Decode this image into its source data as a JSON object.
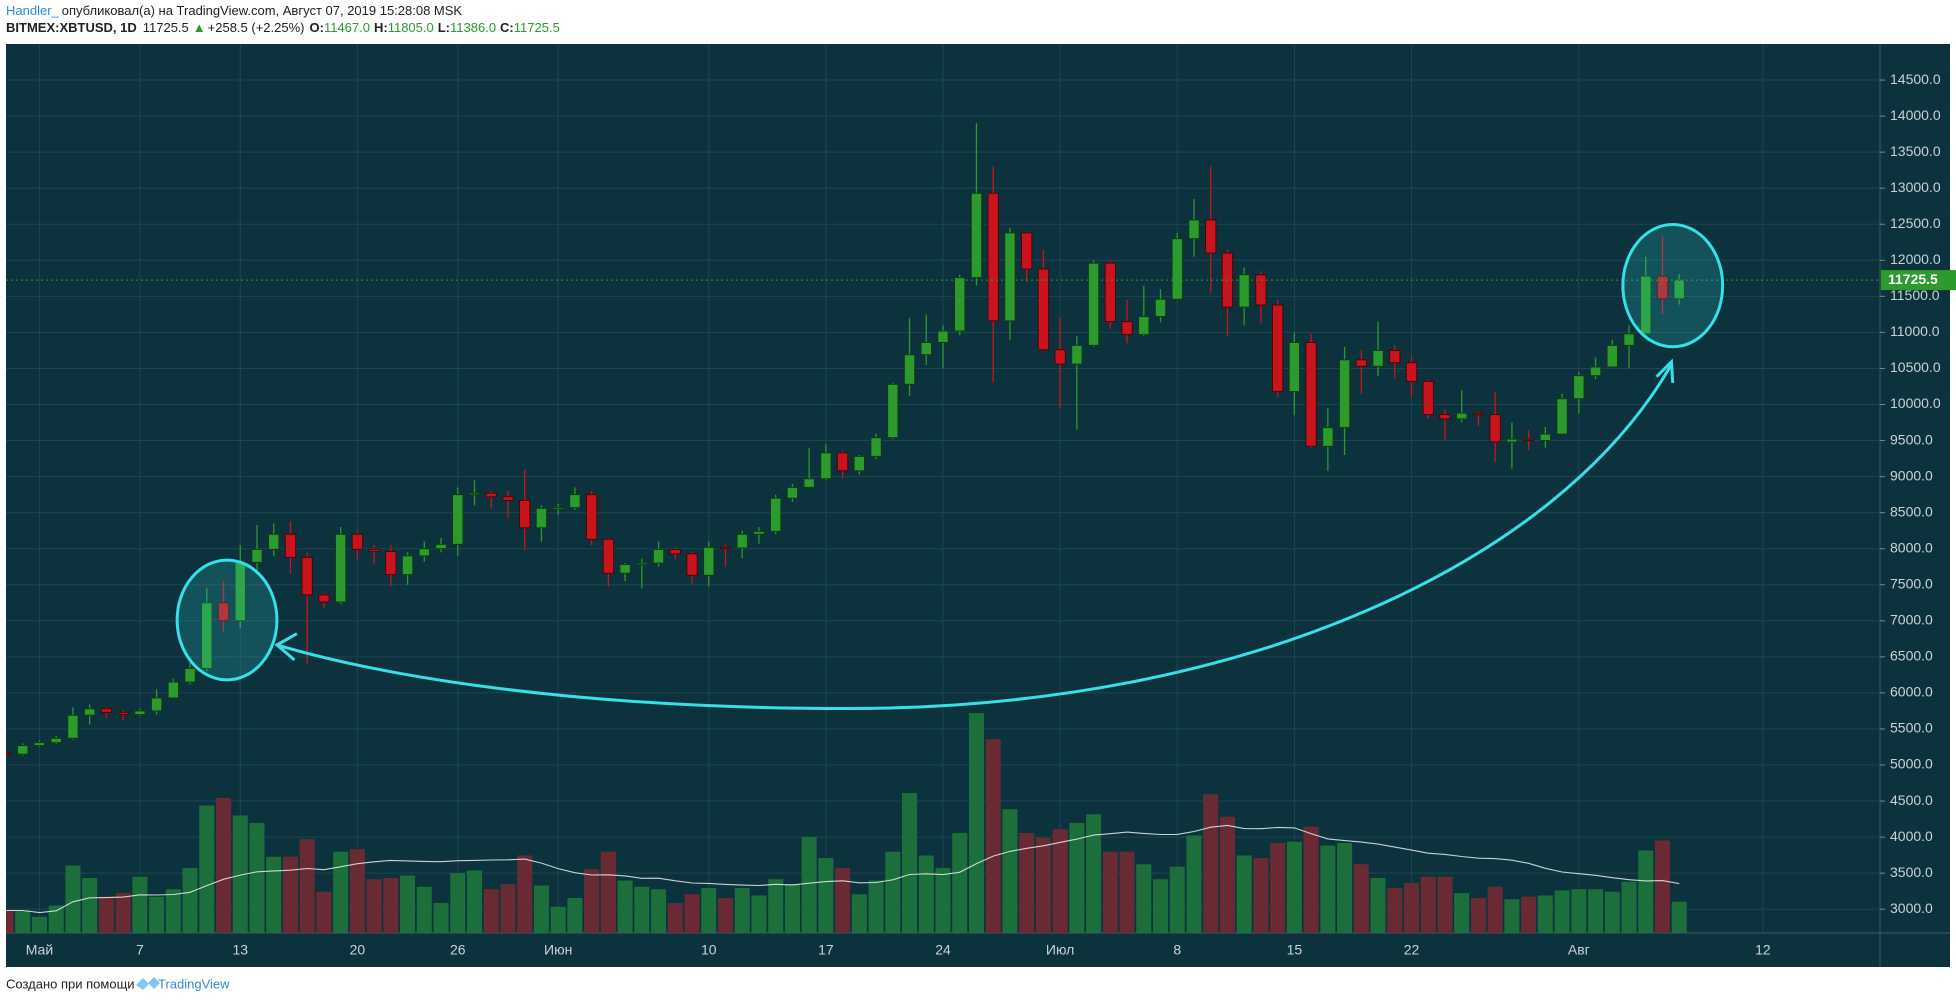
{
  "header": {
    "author": "Handler_",
    "published": "опубликовал(а) на TradingView.com, Август 07, 2019 15:28:08 MSK",
    "symbol": "BITMEX:XBTUSD, 1D",
    "last": "11725.5",
    "change_arrow": "▲",
    "change": "+258.5 (+2.25%)",
    "open_label": "O:",
    "open": "11467.0",
    "high_label": "H:",
    "high": "11805.0",
    "low_label": "L:",
    "low": "11386.0",
    "close_label": "C:",
    "close": "11725.5"
  },
  "chart_data": {
    "type": "candlestick",
    "x": [
      "04-29",
      "04-30",
      "05-01",
      "05-02",
      "05-03",
      "05-04",
      "05-05",
      "05-06",
      "05-07",
      "05-08",
      "05-09",
      "05-10",
      "05-11",
      "05-12",
      "05-13",
      "05-14",
      "05-15",
      "05-16",
      "05-17",
      "05-18",
      "05-19",
      "05-20",
      "05-21",
      "05-22",
      "05-23",
      "05-24",
      "05-25",
      "05-26",
      "05-27",
      "05-28",
      "05-29",
      "05-30",
      "05-31",
      "06-01",
      "06-02",
      "06-03",
      "06-04",
      "06-05",
      "06-06",
      "06-07",
      "06-08",
      "06-09",
      "06-10",
      "06-11",
      "06-12",
      "06-13",
      "06-14",
      "06-15",
      "06-16",
      "06-17",
      "06-18",
      "06-19",
      "06-20",
      "06-21",
      "06-22",
      "06-23",
      "06-24",
      "06-25",
      "06-26",
      "06-27",
      "06-28",
      "06-29",
      "06-30",
      "07-01",
      "07-02",
      "07-03",
      "07-04",
      "07-05",
      "07-06",
      "07-07",
      "07-08",
      "07-09",
      "07-10",
      "07-11",
      "07-12",
      "07-13",
      "07-14",
      "07-15",
      "07-16",
      "07-17",
      "07-18",
      "07-19",
      "07-20",
      "07-21",
      "07-22",
      "07-23",
      "07-24",
      "07-25",
      "07-26",
      "07-27",
      "07-28",
      "07-29",
      "07-30",
      "07-31",
      "08-01",
      "08-02",
      "08-03",
      "08-04",
      "08-05",
      "08-06",
      "08-07"
    ],
    "open": [
      5170,
      5150,
      5270,
      5310,
      5370,
      5690,
      5780,
      5730,
      5700,
      5750,
      5930,
      6150,
      6340,
      7250,
      7000,
      7810,
      7990,
      8200,
      7880,
      7360,
      7260,
      8200,
      7990,
      7960,
      7640,
      7900,
      8000,
      8060,
      8750,
      8770,
      8720,
      8670,
      8290,
      8560,
      8570,
      8750,
      8130,
      7660,
      7780,
      7800,
      7990,
      7930,
      7630,
      8020,
      8010,
      8200,
      8240,
      8700,
      8850,
      8970,
      9330,
      9080,
      9280,
      9540,
      10280,
      10690,
      10860,
      11020,
      11760,
      12930,
      11160,
      12380,
      11880,
      10760,
      10560,
      10820,
      11960,
      11150,
      10970,
      11220,
      11460,
      12300,
      12560,
      12100,
      11350,
      11800,
      11380,
      10180,
      10860,
      9420,
      9680,
      10620,
      10530,
      10750,
      10580,
      10320,
      9860,
      9800,
      9880,
      9860,
      9480,
      9520,
      9500,
      9590,
      10080,
      10400,
      10520,
      10820,
      10980,
      11780,
      11467
    ],
    "high": [
      5200,
      5300,
      5340,
      5400,
      5800,
      5840,
      5800,
      5760,
      5780,
      6050,
      6200,
      6420,
      7450,
      7550,
      8050,
      8330,
      8350,
      8380,
      7950,
      7380,
      8300,
      8250,
      8050,
      8050,
      7950,
      8100,
      8150,
      8850,
      8950,
      8800,
      8800,
      9100,
      8600,
      8620,
      8850,
      8800,
      8150,
      7800,
      7860,
      8100,
      8020,
      7960,
      8100,
      8050,
      8250,
      8300,
      8750,
      8900,
      9400,
      9450,
      9360,
      9300,
      9600,
      10300,
      11200,
      11250,
      11100,
      11800,
      13900,
      13300,
      12450,
      12400,
      12150,
      11200,
      10950,
      12000,
      12000,
      11450,
      11650,
      11600,
      12380,
      12850,
      13300,
      12150,
      11900,
      11850,
      11450,
      11000,
      10980,
      9950,
      10800,
      10750,
      11150,
      10820,
      10680,
      10340,
      9930,
      10200,
      9900,
      10180,
      9750,
      9640,
      9690,
      10150,
      10450,
      10650,
      10900,
      11100,
      12050,
      12330,
      11805
    ],
    "low": [
      5120,
      5130,
      5250,
      5290,
      5350,
      5560,
      5650,
      5620,
      5680,
      5700,
      5920,
      6120,
      6300,
      6850,
      6900,
      7650,
      7900,
      7650,
      6400,
      7170,
      7230,
      7850,
      7780,
      7480,
      7500,
      7820,
      7950,
      7900,
      8600,
      8560,
      8420,
      7980,
      8100,
      8470,
      8540,
      8050,
      7480,
      7550,
      7450,
      7750,
      7850,
      7520,
      7480,
      7750,
      7870,
      8070,
      8200,
      8650,
      8840,
      8950,
      8970,
      9030,
      9240,
      9520,
      10120,
      10550,
      10500,
      10960,
      11650,
      10300,
      10900,
      11700,
      10750,
      9950,
      9650,
      10800,
      11050,
      10850,
      10950,
      11140,
      11450,
      12050,
      11550,
      10950,
      11100,
      11120,
      10100,
      9850,
      9400,
      9080,
      9300,
      10150,
      10390,
      10360,
      10100,
      9800,
      9500,
      9750,
      9700,
      9200,
      9110,
      9370,
      9400,
      9580,
      9880,
      10350,
      10510,
      10500,
      10950,
      11250,
      11386
    ],
    "close": [
      5150,
      5270,
      5310,
      5370,
      5690,
      5780,
      5730,
      5700,
      5750,
      5930,
      6150,
      6340,
      7250,
      7000,
      7810,
      7990,
      8200,
      7880,
      7360,
      7260,
      8200,
      7990,
      7960,
      7640,
      7900,
      8000,
      8060,
      8750,
      8770,
      8720,
      8670,
      8290,
      8560,
      8570,
      8750,
      8130,
      7660,
      7780,
      7800,
      7990,
      7930,
      7630,
      8020,
      8010,
      8200,
      8240,
      8700,
      8850,
      8970,
      9330,
      9080,
      9280,
      9540,
      10280,
      10690,
      10860,
      11020,
      11760,
      12930,
      11160,
      12380,
      11880,
      10760,
      10560,
      10820,
      11960,
      11150,
      10970,
      11220,
      11460,
      12300,
      12560,
      12100,
      11350,
      11800,
      11380,
      10180,
      10860,
      9420,
      9680,
      10620,
      10530,
      10750,
      10580,
      10320,
      9860,
      9800,
      9880,
      9860,
      9480,
      9520,
      9500,
      9590,
      10080,
      10400,
      10520,
      10820,
      10980,
      11780,
      11467,
      11725.5
    ],
    "volume": [
      18,
      18,
      13,
      22,
      54,
      44,
      29,
      32,
      45,
      29,
      35,
      52,
      102,
      108,
      94,
      88,
      61,
      61,
      75,
      33,
      65,
      67,
      43,
      44,
      46,
      37,
      24,
      48,
      50,
      35,
      39,
      62,
      38,
      21,
      28,
      51,
      65,
      42,
      37,
      35,
      24,
      31,
      36,
      28,
      36,
      30,
      43,
      39,
      77,
      60,
      52,
      31,
      42,
      65,
      112,
      62,
      52,
      80,
      176,
      155,
      99,
      80,
      76,
      83,
      88,
      95,
      65,
      65,
      55,
      43,
      53,
      78,
      111,
      93,
      62,
      60,
      72,
      73,
      85,
      70,
      72,
      55,
      44,
      36,
      40,
      45,
      45,
      32,
      28,
      37,
      27,
      29,
      30,
      34,
      35,
      35,
      33,
      41,
      66,
      74,
      25
    ],
    "up_color": "#2c9a2c",
    "down_color": "#c8141c",
    "volume_up_color": "#1c6e3a",
    "volume_down_color": "#6a2a34",
    "ma_color": "#e8eef0",
    "ylim": [
      2670,
      15000
    ],
    "yticks": [
      {
        "value": 3000,
        "label": "3000.0"
      },
      {
        "value": 3500,
        "label": "3500.0"
      },
      {
        "value": 4000,
        "label": "4000.0"
      },
      {
        "value": 4500,
        "label": "4500.0"
      },
      {
        "value": 5000,
        "label": "5000.0"
      },
      {
        "value": 5500,
        "label": "5500.0"
      },
      {
        "value": 6000,
        "label": "6000.0"
      },
      {
        "value": 6500,
        "label": "6500.0"
      },
      {
        "value": 7000,
        "label": "7000.0"
      },
      {
        "value": 7500,
        "label": "7500.0"
      },
      {
        "value": 8000,
        "label": "8000.0"
      },
      {
        "value": 8500,
        "label": "8500.0"
      },
      {
        "value": 9000,
        "label": "9000.0"
      },
      {
        "value": 9500,
        "label": "9500.0"
      },
      {
        "value": 10000,
        "label": "10000.0"
      },
      {
        "value": 10500,
        "label": "10500.0"
      },
      {
        "value": 11000,
        "label": "11000.0"
      },
      {
        "value": 11500,
        "label": "11500.0"
      },
      {
        "value": 12000,
        "label": "12000.0"
      },
      {
        "value": 12500,
        "label": "12500.0"
      },
      {
        "value": 13000,
        "label": "13000.0"
      },
      {
        "value": 13500,
        "label": "13500.0"
      },
      {
        "value": 14000,
        "label": "14000.0"
      },
      {
        "value": 14500,
        "label": "14500.0"
      }
    ],
    "xlim": [
      "04-29",
      "08-19"
    ],
    "xticks": [
      {
        "value": "05-01",
        "label": "Май"
      },
      {
        "value": "05-07",
        "label": "7"
      },
      {
        "value": "05-13",
        "label": "13"
      },
      {
        "value": "05-20",
        "label": "20"
      },
      {
        "value": "05-26",
        "label": "26"
      },
      {
        "value": "06-01",
        "label": "Июн"
      },
      {
        "value": "06-10",
        "label": "10"
      },
      {
        "value": "06-17",
        "label": "17"
      },
      {
        "value": "06-24",
        "label": "24"
      },
      {
        "value": "07-01",
        "label": "Июл"
      },
      {
        "value": "07-08",
        "label": "8"
      },
      {
        "value": "07-15",
        "label": "15"
      },
      {
        "value": "07-22",
        "label": "22"
      },
      {
        "value": "08-01",
        "label": "Авг"
      },
      {
        "value": "08-12",
        "label": "12"
      }
    ],
    "grid": true
  },
  "footer": {
    "text": "Создано при помощи",
    "brand": "TradingView"
  }
}
